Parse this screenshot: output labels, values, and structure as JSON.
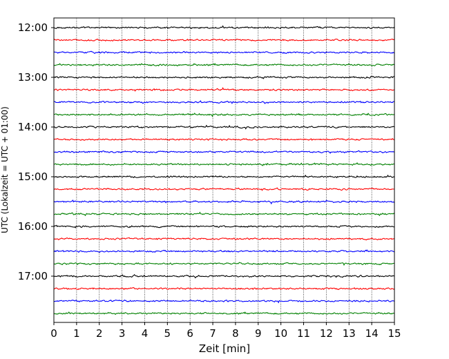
{
  "chart_data": {
    "type": "line",
    "title": "",
    "xlabel": "Zeit  [min]",
    "ylabel": "UTC (Lokalzeit = UTC + 01:00)",
    "xlim": [
      0,
      15
    ],
    "x_ticks": [
      "0",
      "1",
      "2",
      "3",
      "4",
      "5",
      "6",
      "7",
      "8",
      "9",
      "10",
      "11",
      "12",
      "13",
      "14",
      "15"
    ],
    "y_tick_labels": [
      "12:00",
      "13:00",
      "14:00",
      "15:00",
      "16:00",
      "17:00"
    ],
    "trace_start_times": [
      "12:00",
      "12:15",
      "12:30",
      "12:45",
      "13:00",
      "13:15",
      "13:30",
      "13:45",
      "14:00",
      "14:15",
      "14:30",
      "14:45",
      "15:00",
      "15:15",
      "15:30",
      "15:45",
      "16:00",
      "16:15",
      "16:30",
      "16:45",
      "17:00",
      "17:15",
      "17:30",
      "17:45"
    ],
    "trace_minutes": 15,
    "trace_colors": [
      "#000000",
      "#ff0000",
      "#0000ff",
      "#008000"
    ],
    "grid": "vertical dotted at each minute",
    "legend": "none"
  }
}
